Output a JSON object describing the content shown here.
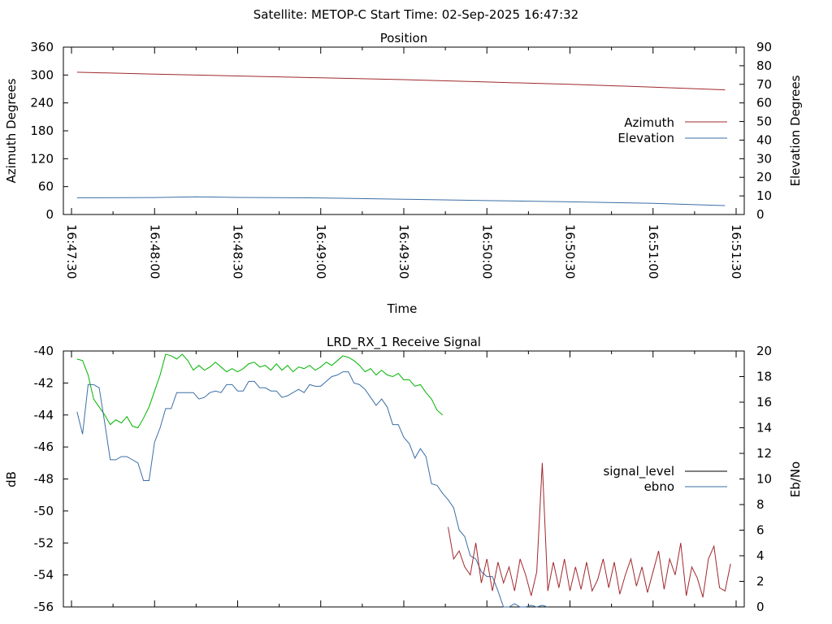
{
  "header": {
    "title": "Satellite: METOP-C    Start Time: 02-Sep-2025 16:47:32"
  },
  "colors": {
    "azimuth": "#a0282d",
    "elevation": "#3a6ea5",
    "ebno_green": "#00b400",
    "ebno_blue": "#3a6ea5",
    "signal_red": "#a0282d",
    "axis": "#000000"
  },
  "chart_data": [
    {
      "type": "line",
      "title": "Position",
      "xlabel": "Time",
      "ylabel": "Azimuth Degrees",
      "y2label": "Elevation Degrees",
      "xlim_seconds_from_16_47_30": [
        0,
        240
      ],
      "ylim": [
        0,
        360
      ],
      "y2lim": [
        0,
        90
      ],
      "x_ticks": [
        "16:47:30",
        "16:48:00",
        "16:48:30",
        "16:49:00",
        "16:49:30",
        "16:50:00",
        "16:50:30",
        "16:51:00",
        "16:51:30"
      ],
      "y_ticks": [
        "0",
        "60",
        "120",
        "180",
        "240",
        "300",
        "360"
      ],
      "y2_ticks": [
        "0",
        "10",
        "20",
        "30",
        "40",
        "50",
        "60",
        "70",
        "80",
        "90"
      ],
      "legend_position": "right-middle",
      "series": [
        {
          "name": "Azimuth",
          "axis": "y",
          "x": [
            2,
            30,
            60,
            90,
            120,
            150,
            180,
            210,
            236
          ],
          "values": [
            306,
            302,
            298,
            294,
            290,
            285,
            280,
            274,
            268
          ]
        },
        {
          "name": "Elevation",
          "axis": "y2",
          "x": [
            2,
            30,
            45,
            60,
            90,
            120,
            150,
            180,
            210,
            236
          ],
          "values": [
            9.0,
            9.1,
            9.5,
            9.2,
            8.9,
            8.2,
            7.5,
            6.8,
            6.0,
            4.8
          ]
        }
      ]
    },
    {
      "type": "line",
      "title": "LRD_RX_1 Receive Signal",
      "xlabel": "",
      "ylabel": "dB",
      "y2label": "Eb/No",
      "xlim_seconds_from_16_47_30": [
        0,
        240
      ],
      "ylim": [
        -56,
        -40
      ],
      "y2lim": [
        0,
        20
      ],
      "y_ticks": [
        "-40",
        "-42",
        "-44",
        "-46",
        "-48",
        "-50",
        "-52",
        "-54",
        "-56"
      ],
      "y2_ticks": [
        "0",
        "2",
        "4",
        "6",
        "8",
        "10",
        "12",
        "14",
        "16",
        "18",
        "20"
      ],
      "legend_position": "right-middle",
      "legend": [
        {
          "name": "signal_level",
          "color": "#000000"
        },
        {
          "name": "ebno",
          "color": "#3a6ea5"
        }
      ],
      "series": [
        {
          "name": "green trace",
          "axis": "y",
          "x": [
            2,
            4,
            6,
            8,
            10,
            12,
            14,
            16,
            18,
            20,
            22,
            24,
            26,
            28,
            30,
            32,
            34,
            36,
            38,
            40,
            42,
            44,
            46,
            48,
            50,
            52,
            54,
            56,
            58,
            60,
            62,
            64,
            66,
            68,
            70,
            72,
            74,
            76,
            78,
            80,
            82,
            84,
            86,
            88,
            90,
            92,
            94,
            96,
            98,
            100,
            102,
            104,
            106,
            108,
            110,
            112,
            114,
            116,
            118,
            120,
            122,
            124,
            126,
            128,
            130,
            132,
            134
          ],
          "values": [
            -40.5,
            -40.6,
            -41.5,
            -43.0,
            -43.5,
            -44.0,
            -44.6,
            -44.3,
            -44.5,
            -44.1,
            -44.7,
            -44.8,
            -44.2,
            -43.5,
            -42.5,
            -41.5,
            -40.2,
            -40.3,
            -40.5,
            -40.2,
            -40.6,
            -41.2,
            -40.9,
            -41.2,
            -41.0,
            -40.7,
            -41.0,
            -41.3,
            -41.1,
            -41.3,
            -41.1,
            -40.8,
            -40.7,
            -41.0,
            -40.9,
            -41.2,
            -40.8,
            -41.2,
            -40.9,
            -41.3,
            -41.0,
            -41.1,
            -40.9,
            -41.2,
            -41.0,
            -40.7,
            -40.9,
            -40.6,
            -40.3,
            -40.4,
            -40.6,
            -40.9,
            -41.3,
            -41.1,
            -41.5,
            -41.2,
            -41.5,
            -41.6,
            -41.4,
            -41.8,
            -41.8,
            -42.2,
            -42.1,
            -42.6,
            -43.0,
            -43.7,
            -44.0
          ]
        },
        {
          "name": "ebno",
          "axis": "y",
          "x": [
            2,
            4,
            6,
            8,
            10,
            12,
            14,
            16,
            18,
            20,
            22,
            24,
            26,
            28,
            30,
            32,
            34,
            36,
            38,
            40,
            42,
            44,
            46,
            48,
            50,
            52,
            54,
            56,
            58,
            60,
            62,
            64,
            66,
            68,
            70,
            72,
            74,
            76,
            78,
            80,
            82,
            84,
            86,
            88,
            90,
            92,
            94,
            96,
            98,
            100,
            102,
            104,
            106,
            108,
            110,
            112,
            114,
            116,
            118,
            120,
            122,
            124,
            126,
            128,
            130,
            132,
            134,
            136,
            138,
            140,
            142,
            144,
            146,
            148,
            150,
            152,
            154,
            156,
            158,
            160,
            162,
            164,
            166,
            168,
            170,
            172
          ],
          "values": [
            -43.8,
            -45.2,
            -42.1,
            -42.1,
            -42.3,
            -44.5,
            -46.8,
            -46.8,
            -46.6,
            -46.6,
            -46.8,
            -47.0,
            -48.1,
            -48.1,
            -45.7,
            -44.8,
            -43.6,
            -43.6,
            -42.6,
            -42.6,
            -42.6,
            -42.6,
            -43.0,
            -42.9,
            -42.6,
            -42.5,
            -42.6,
            -42.1,
            -42.1,
            -42.5,
            -42.5,
            -41.9,
            -41.9,
            -42.3,
            -42.3,
            -42.5,
            -42.5,
            -42.9,
            -42.8,
            -42.6,
            -42.4,
            -42.6,
            -42.1,
            -42.2,
            -42.2,
            -41.9,
            -41.6,
            -41.5,
            -41.3,
            -41.3,
            -42.0,
            -42.1,
            -42.4,
            -42.9,
            -43.4,
            -43.0,
            -43.5,
            -44.6,
            -44.6,
            -45.4,
            -45.8,
            -46.7,
            -46.1,
            -46.6,
            -48.3,
            -48.4,
            -48.9,
            -49.3,
            -49.8,
            -51.2,
            -51.6,
            -52.8,
            -53.0,
            -53.8,
            -54.1,
            -54.1,
            -55.0,
            -56.0,
            -56.0,
            -55.8,
            -56.0,
            -56.1,
            -55.9,
            -56.0,
            -55.9,
            -56.0
          ]
        },
        {
          "name": "red trace",
          "axis": "y",
          "x": [
            136,
            138,
            140,
            142,
            144,
            146,
            148,
            150,
            152,
            154,
            156,
            158,
            160,
            162,
            164,
            166,
            168,
            170,
            172,
            174,
            176,
            178,
            180,
            182,
            184,
            186,
            188,
            190,
            192,
            194,
            196,
            198,
            200,
            202,
            204,
            206,
            208,
            210,
            212,
            214,
            216,
            218,
            220,
            222,
            224,
            226,
            228,
            230,
            232,
            234,
            236,
            238
          ],
          "values": [
            -51.0,
            -53.0,
            -52.5,
            -53.5,
            -54.0,
            -52.0,
            -54.5,
            -53.0,
            -55.0,
            -53.2,
            -54.5,
            -53.5,
            -55.0,
            -53.0,
            -54.0,
            -55.3,
            -53.8,
            -47.0,
            -55.0,
            -53.2,
            -54.8,
            -53.0,
            -55.0,
            -53.5,
            -54.9,
            -53.2,
            -55.0,
            -54.3,
            -53.0,
            -54.8,
            -53.2,
            -55.2,
            -54.0,
            -53.0,
            -54.7,
            -53.5,
            -55.1,
            -53.8,
            -52.5,
            -54.9,
            -53.0,
            -54.0,
            -52.0,
            -55.3,
            -53.5,
            -54.2,
            -55.4,
            -53.0,
            -52.2,
            -54.8,
            -55.0,
            -53.3
          ]
        }
      ]
    }
  ]
}
